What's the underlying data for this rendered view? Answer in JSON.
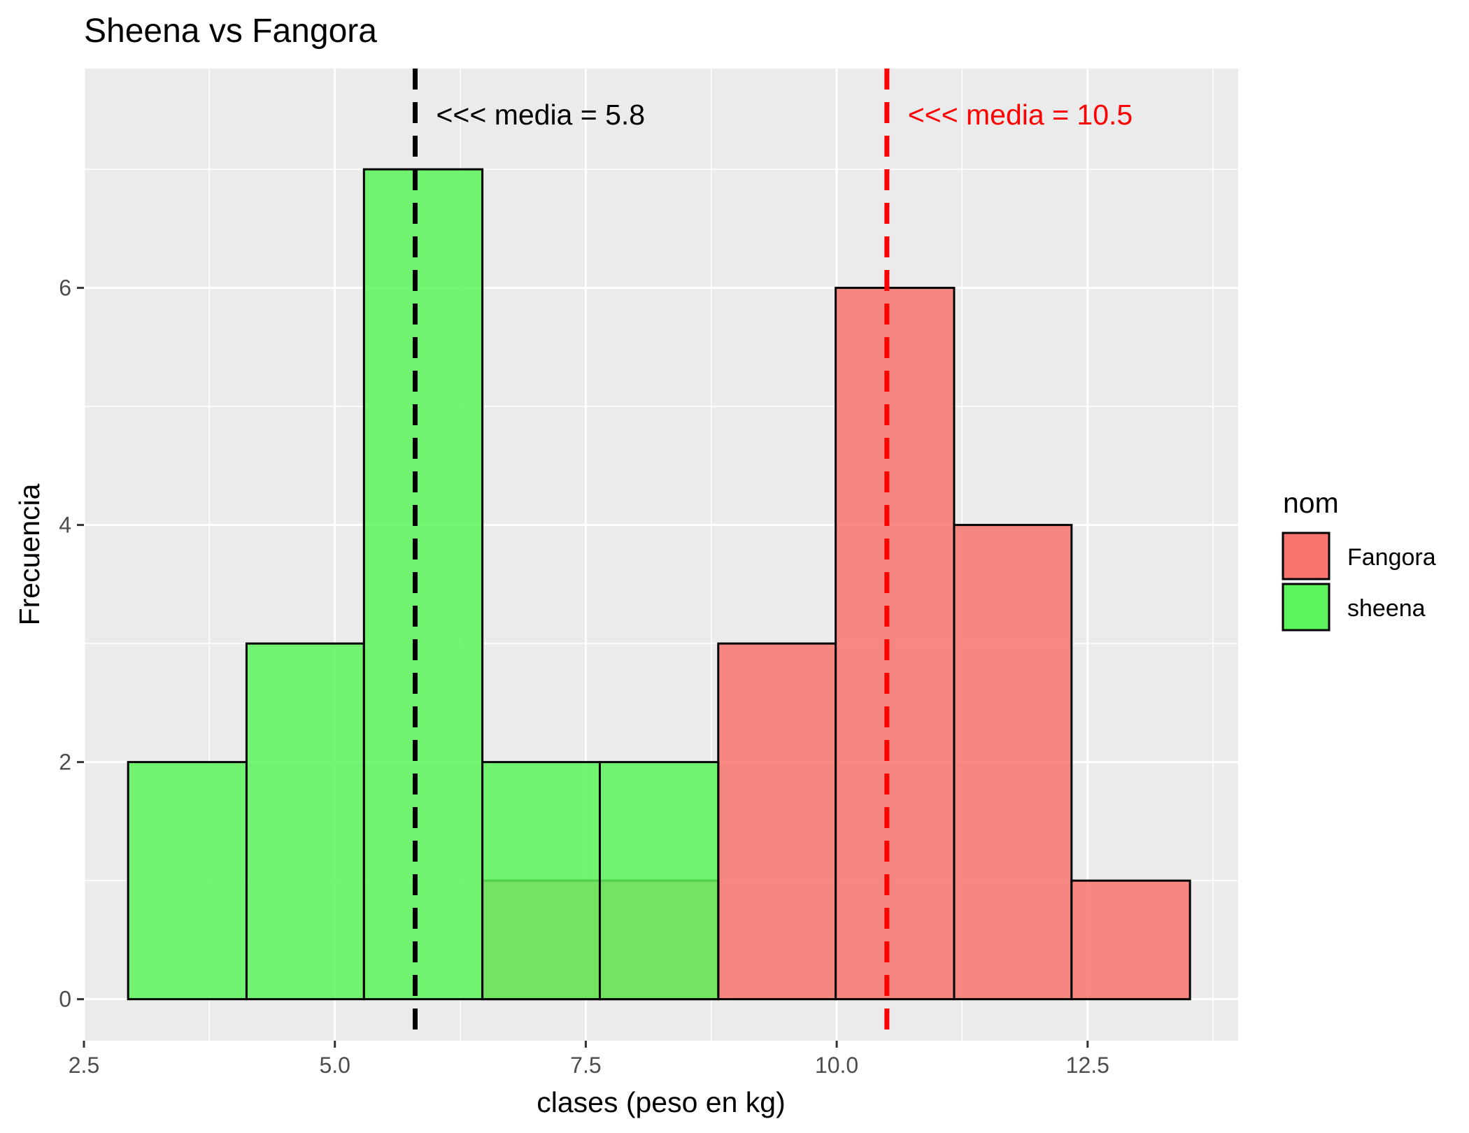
{
  "chart_data": {
    "type": "bar",
    "subtype": "overlapping-histogram",
    "title": "Sheena vs Fangora",
    "xlabel": "clases (peso en kg)",
    "ylabel": "Frecuencia",
    "xlim": [
      2.5,
      14.0
    ],
    "ylim": [
      -0.35,
      7.85
    ],
    "x_ticks": [
      2.5,
      5.0,
      7.5,
      10.0,
      12.5
    ],
    "x_tick_labels": [
      "2.5",
      "5.0",
      "7.5",
      "10.0",
      "12.5"
    ],
    "y_ticks": [
      0,
      2,
      4,
      6
    ],
    "y_tick_labels": [
      "0",
      "2",
      "4",
      "6"
    ],
    "grid": true,
    "legend": {
      "title": "nom",
      "placement": "right",
      "entries": [
        {
          "label": "Fangora",
          "color": "#F8766D"
        },
        {
          "label": "sheena",
          "color": "#5CF35C"
        }
      ]
    },
    "series": [
      {
        "name": "Fangora",
        "color": "#F8766D",
        "bins": [
          {
            "x0": 6.47,
            "x1": 7.64,
            "count": 1
          },
          {
            "x0": 7.64,
            "x1": 8.82,
            "count": 1
          },
          {
            "x0": 8.82,
            "x1": 9.99,
            "count": 3
          },
          {
            "x0": 9.99,
            "x1": 11.17,
            "count": 6
          },
          {
            "x0": 11.17,
            "x1": 12.34,
            "count": 4
          },
          {
            "x0": 12.34,
            "x1": 13.52,
            "count": 1
          }
        ]
      },
      {
        "name": "sheena",
        "color": "#5CF35C",
        "bins": [
          {
            "x0": 2.94,
            "x1": 4.12,
            "count": 2
          },
          {
            "x0": 4.12,
            "x1": 5.29,
            "count": 3
          },
          {
            "x0": 5.29,
            "x1": 6.47,
            "count": 7
          },
          {
            "x0": 6.47,
            "x1": 7.64,
            "count": 2
          },
          {
            "x0": 7.64,
            "x1": 8.82,
            "count": 2
          }
        ]
      }
    ],
    "mean_lines": [
      {
        "x": 5.8,
        "color": "#000000",
        "label": "<<< media = 5.8"
      },
      {
        "x": 10.5,
        "color": "#FF0000",
        "label": "<<< media = 10.5"
      }
    ]
  }
}
